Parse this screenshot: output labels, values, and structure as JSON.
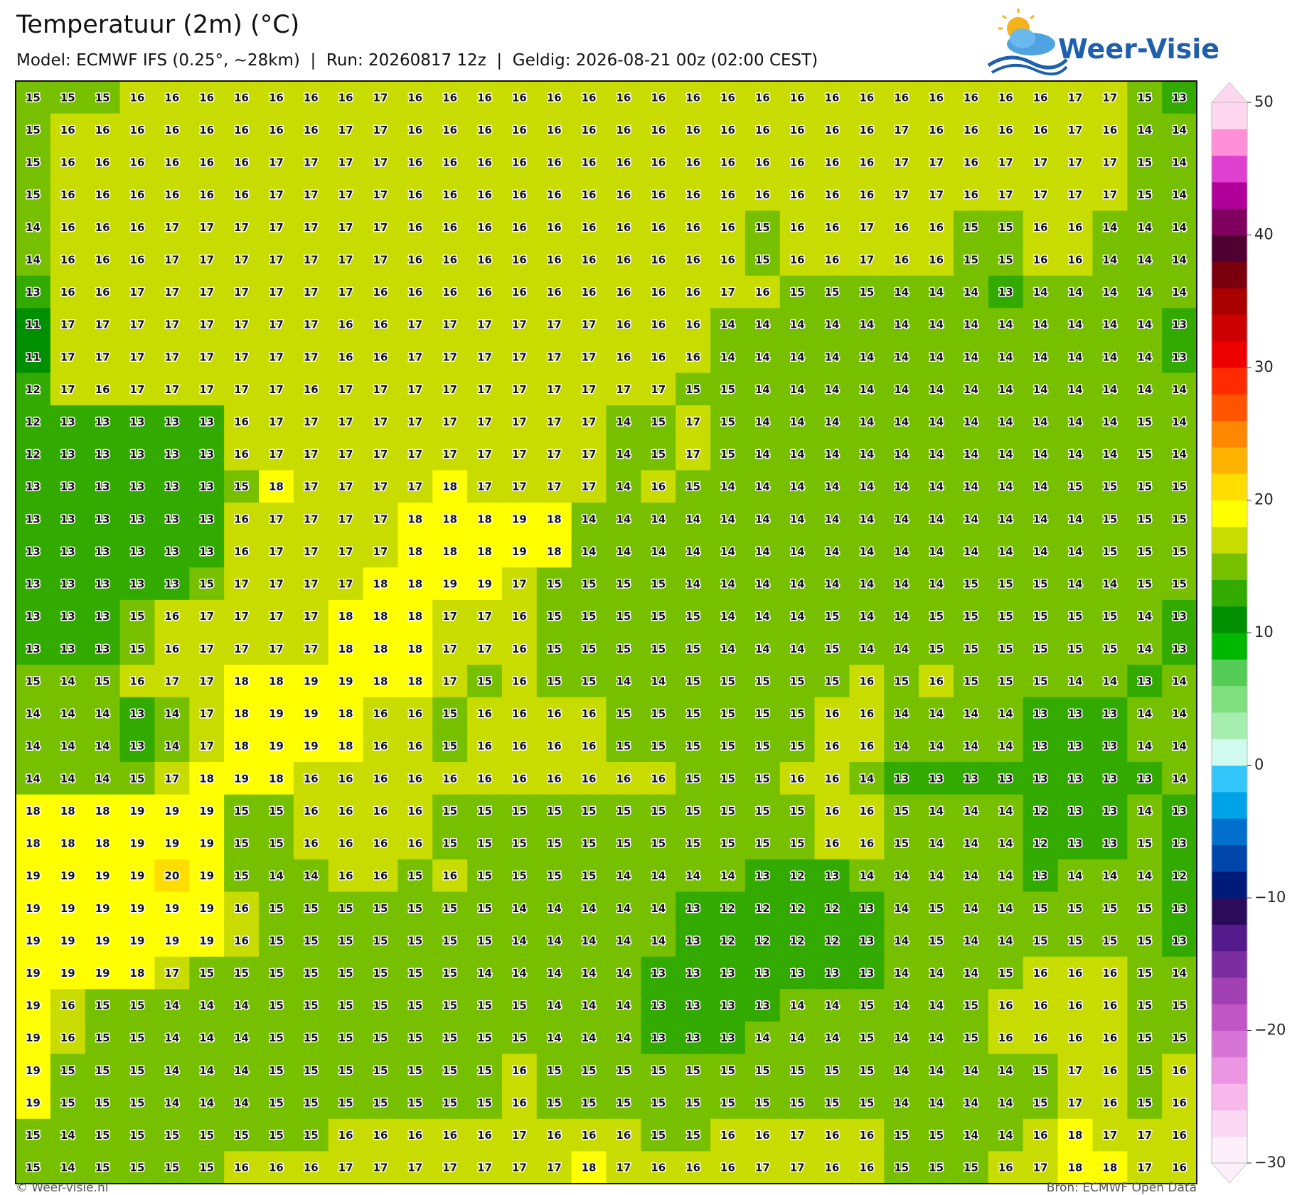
{
  "header": {
    "title": "Temperatuur (2m) (°C)",
    "subtitle": "Model: ECMWF IFS (0.25°, ~28km)  |  Run: 20260817 12z  |  Geldig: 2026-08-21 00z (02:00 CEST)",
    "logo": "Weer-Visie"
  },
  "grid": {
    "values": [
      [
        15,
        15,
        15,
        16,
        16,
        16,
        16,
        16,
        16,
        16,
        17,
        16,
        16,
        16,
        16,
        16,
        16,
        16,
        16,
        16,
        16,
        16,
        16,
        16,
        16,
        16,
        16,
        16,
        16,
        16,
        17,
        17,
        15,
        13
      ],
      [
        15,
        16,
        16,
        16,
        16,
        16,
        16,
        16,
        16,
        17,
        17,
        16,
        16,
        16,
        16,
        16,
        16,
        16,
        16,
        16,
        16,
        16,
        16,
        16,
        16,
        17,
        16,
        16,
        16,
        16,
        17,
        16,
        14,
        14
      ],
      [
        15,
        16,
        16,
        16,
        16,
        16,
        16,
        17,
        17,
        17,
        17,
        16,
        16,
        16,
        16,
        16,
        16,
        16,
        16,
        16,
        16,
        16,
        16,
        16,
        16,
        17,
        17,
        16,
        17,
        17,
        17,
        17,
        15,
        14
      ],
      [
        15,
        16,
        16,
        16,
        16,
        16,
        16,
        17,
        17,
        17,
        17,
        16,
        16,
        16,
        16,
        16,
        16,
        16,
        16,
        16,
        16,
        16,
        16,
        16,
        16,
        17,
        17,
        16,
        17,
        17,
        17,
        17,
        15,
        14
      ],
      [
        14,
        16,
        16,
        16,
        17,
        17,
        17,
        17,
        17,
        17,
        17,
        16,
        16,
        16,
        16,
        16,
        16,
        16,
        16,
        16,
        16,
        15,
        16,
        16,
        17,
        16,
        16,
        15,
        15,
        16,
        16,
        14,
        14,
        14
      ],
      [
        14,
        16,
        16,
        16,
        17,
        17,
        17,
        17,
        17,
        17,
        17,
        16,
        16,
        16,
        16,
        16,
        16,
        16,
        16,
        16,
        16,
        15,
        16,
        16,
        17,
        16,
        16,
        15,
        15,
        16,
        16,
        14,
        14,
        14
      ],
      [
        13,
        16,
        16,
        17,
        17,
        17,
        17,
        17,
        17,
        17,
        16,
        16,
        16,
        16,
        16,
        16,
        16,
        16,
        16,
        16,
        17,
        16,
        15,
        15,
        15,
        14,
        14,
        14,
        13,
        14,
        14,
        14,
        14,
        14
      ],
      [
        11,
        17,
        17,
        17,
        17,
        17,
        17,
        17,
        17,
        16,
        16,
        17,
        17,
        17,
        17,
        17,
        17,
        16,
        16,
        16,
        14,
        14,
        14,
        14,
        14,
        14,
        14,
        14,
        14,
        14,
        14,
        14,
        14,
        13
      ],
      [
        11,
        17,
        17,
        17,
        17,
        17,
        17,
        17,
        17,
        16,
        16,
        17,
        17,
        17,
        17,
        17,
        17,
        16,
        16,
        16,
        14,
        14,
        14,
        14,
        14,
        14,
        14,
        14,
        14,
        14,
        14,
        14,
        14,
        13
      ],
      [
        12,
        17,
        16,
        17,
        17,
        17,
        17,
        17,
        16,
        17,
        17,
        17,
        17,
        17,
        17,
        17,
        17,
        17,
        17,
        15,
        15,
        14,
        14,
        14,
        14,
        14,
        14,
        14,
        14,
        14,
        14,
        14,
        14,
        14
      ],
      [
        12,
        13,
        13,
        13,
        13,
        13,
        16,
        17,
        17,
        17,
        17,
        17,
        17,
        17,
        17,
        17,
        17,
        14,
        15,
        17,
        15,
        14,
        14,
        14,
        14,
        14,
        14,
        14,
        14,
        14,
        14,
        14,
        15,
        14
      ],
      [
        12,
        13,
        13,
        13,
        13,
        13,
        16,
        17,
        17,
        17,
        17,
        17,
        17,
        17,
        17,
        17,
        17,
        14,
        15,
        17,
        15,
        14,
        14,
        14,
        14,
        14,
        14,
        14,
        14,
        14,
        14,
        14,
        15,
        14
      ],
      [
        13,
        13,
        13,
        13,
        13,
        13,
        15,
        18,
        17,
        17,
        17,
        17,
        18,
        17,
        17,
        17,
        17,
        14,
        16,
        15,
        14,
        14,
        14,
        14,
        14,
        14,
        14,
        14,
        14,
        14,
        15,
        15,
        15,
        15
      ],
      [
        13,
        13,
        13,
        13,
        13,
        13,
        16,
        17,
        17,
        17,
        17,
        18,
        18,
        18,
        19,
        18,
        14,
        14,
        14,
        14,
        14,
        14,
        14,
        14,
        14,
        14,
        14,
        14,
        14,
        14,
        14,
        15,
        15,
        15
      ],
      [
        13,
        13,
        13,
        13,
        13,
        13,
        16,
        17,
        17,
        17,
        17,
        18,
        18,
        18,
        19,
        18,
        14,
        14,
        14,
        14,
        14,
        14,
        14,
        14,
        14,
        14,
        14,
        14,
        14,
        14,
        14,
        15,
        15,
        15
      ],
      [
        13,
        13,
        13,
        13,
        13,
        15,
        17,
        17,
        17,
        17,
        18,
        18,
        19,
        19,
        17,
        15,
        15,
        15,
        15,
        14,
        14,
        14,
        14,
        14,
        14,
        14,
        14,
        15,
        15,
        15,
        14,
        14,
        15,
        15
      ],
      [
        13,
        13,
        13,
        15,
        16,
        17,
        17,
        17,
        17,
        18,
        18,
        18,
        17,
        17,
        16,
        15,
        15,
        15,
        15,
        15,
        14,
        14,
        14,
        15,
        14,
        14,
        15,
        15,
        15,
        15,
        15,
        15,
        14,
        13
      ],
      [
        13,
        13,
        13,
        15,
        16,
        17,
        17,
        17,
        17,
        18,
        18,
        18,
        17,
        17,
        16,
        15,
        15,
        15,
        15,
        15,
        14,
        14,
        14,
        15,
        14,
        14,
        15,
        15,
        15,
        15,
        15,
        15,
        14,
        13
      ],
      [
        15,
        14,
        15,
        16,
        17,
        17,
        18,
        18,
        19,
        19,
        18,
        18,
        17,
        15,
        16,
        15,
        15,
        14,
        14,
        15,
        15,
        15,
        15,
        15,
        16,
        15,
        16,
        15,
        15,
        15,
        14,
        14,
        13,
        14
      ],
      [
        14,
        14,
        14,
        13,
        14,
        17,
        18,
        19,
        19,
        18,
        16,
        16,
        15,
        16,
        16,
        16,
        16,
        15,
        15,
        15,
        15,
        15,
        15,
        16,
        16,
        14,
        14,
        14,
        14,
        13,
        13,
        13,
        14,
        14
      ],
      [
        14,
        14,
        14,
        13,
        14,
        17,
        18,
        19,
        19,
        18,
        16,
        16,
        15,
        16,
        16,
        16,
        16,
        15,
        15,
        15,
        15,
        15,
        15,
        16,
        16,
        14,
        14,
        14,
        14,
        13,
        13,
        13,
        14,
        14
      ],
      [
        14,
        14,
        14,
        15,
        17,
        18,
        19,
        18,
        16,
        16,
        16,
        16,
        16,
        16,
        16,
        16,
        16,
        16,
        16,
        15,
        15,
        15,
        16,
        16,
        14,
        13,
        13,
        13,
        13,
        13,
        13,
        13,
        13,
        14
      ],
      [
        18,
        18,
        18,
        19,
        19,
        19,
        15,
        15,
        16,
        16,
        16,
        16,
        15,
        15,
        15,
        15,
        15,
        15,
        15,
        15,
        15,
        15,
        15,
        16,
        16,
        15,
        14,
        14,
        14,
        12,
        13,
        13,
        14,
        13
      ],
      [
        18,
        18,
        18,
        19,
        19,
        19,
        15,
        15,
        16,
        16,
        16,
        16,
        15,
        15,
        15,
        15,
        15,
        15,
        15,
        15,
        15,
        15,
        15,
        16,
        16,
        15,
        14,
        14,
        14,
        12,
        13,
        13,
        15,
        13
      ],
      [
        19,
        19,
        19,
        19,
        20,
        19,
        15,
        14,
        14,
        16,
        16,
        15,
        16,
        15,
        15,
        15,
        15,
        14,
        14,
        14,
        14,
        13,
        12,
        13,
        14,
        14,
        14,
        14,
        14,
        13,
        14,
        14,
        14,
        12
      ],
      [
        19,
        19,
        19,
        19,
        19,
        19,
        16,
        15,
        15,
        15,
        15,
        15,
        15,
        15,
        14,
        14,
        14,
        14,
        14,
        13,
        12,
        12,
        12,
        12,
        13,
        14,
        15,
        14,
        14,
        15,
        15,
        15,
        15,
        13
      ],
      [
        19,
        19,
        19,
        19,
        19,
        19,
        16,
        15,
        15,
        15,
        15,
        15,
        15,
        15,
        14,
        14,
        14,
        14,
        14,
        13,
        12,
        12,
        12,
        12,
        13,
        14,
        15,
        14,
        14,
        15,
        15,
        15,
        15,
        13
      ],
      [
        19,
        19,
        19,
        18,
        17,
        15,
        15,
        15,
        15,
        15,
        15,
        15,
        15,
        14,
        14,
        14,
        14,
        14,
        13,
        13,
        13,
        13,
        13,
        13,
        13,
        14,
        14,
        14,
        15,
        16,
        16,
        16,
        15,
        14
      ],
      [
        19,
        16,
        15,
        15,
        14,
        14,
        14,
        15,
        15,
        15,
        15,
        15,
        15,
        15,
        15,
        14,
        14,
        14,
        13,
        13,
        13,
        13,
        14,
        14,
        15,
        14,
        14,
        15,
        16,
        16,
        16,
        16,
        15,
        15
      ],
      [
        19,
        16,
        15,
        15,
        14,
        14,
        14,
        15,
        15,
        15,
        15,
        15,
        15,
        15,
        15,
        14,
        14,
        14,
        13,
        13,
        13,
        14,
        14,
        14,
        15,
        14,
        14,
        15,
        16,
        16,
        16,
        16,
        15,
        15
      ],
      [
        19,
        15,
        15,
        15,
        14,
        14,
        14,
        15,
        15,
        15,
        15,
        15,
        15,
        15,
        16,
        15,
        15,
        15,
        15,
        15,
        15,
        15,
        15,
        15,
        15,
        14,
        14,
        14,
        14,
        15,
        17,
        16,
        15,
        16
      ],
      [
        19,
        15,
        15,
        15,
        14,
        14,
        14,
        15,
        15,
        15,
        15,
        15,
        15,
        15,
        16,
        15,
        15,
        15,
        15,
        15,
        15,
        15,
        15,
        15,
        15,
        14,
        14,
        14,
        14,
        15,
        17,
        16,
        15,
        16
      ],
      [
        15,
        14,
        15,
        15,
        15,
        15,
        15,
        15,
        15,
        16,
        16,
        16,
        16,
        16,
        17,
        16,
        16,
        16,
        15,
        15,
        16,
        16,
        17,
        16,
        16,
        15,
        15,
        14,
        14,
        16,
        18,
        17,
        17,
        16
      ],
      [
        15,
        14,
        15,
        15,
        15,
        15,
        16,
        16,
        16,
        17,
        17,
        17,
        17,
        17,
        17,
        17,
        18,
        17,
        16,
        16,
        16,
        17,
        17,
        16,
        16,
        15,
        15,
        15,
        16,
        17,
        18,
        18,
        17,
        16
      ]
    ]
  },
  "colorbar": {
    "lim": [
      -30,
      50
    ],
    "ticks": [
      {
        "value": -30,
        "label": "−30"
      },
      {
        "value": -20,
        "label": "−20"
      },
      {
        "value": -10,
        "label": "−10"
      },
      0,
      10,
      20,
      30,
      40,
      50
    ],
    "colors": [
      "#fdf0fb",
      "#fbd8f4",
      "#f7b8ec",
      "#eb95e3",
      "#d775d6",
      "#c055c5",
      "#a040b3",
      "#7c2da0",
      "#551a8c",
      "#2a0c5a",
      "#001a7a",
      "#0045aa",
      "#0070cc",
      "#00a3e8",
      "#33c6fb",
      "#d2fbf0",
      "#a6eeb0",
      "#80e080",
      "#55cc55",
      "#00b800",
      "#008f00",
      "#33aa00",
      "#77c000",
      "#c8dc00",
      "#ffff00",
      "#ffdd00",
      "#ffb300",
      "#ff8800",
      "#ff5500",
      "#ff2a00",
      "#ee0000",
      "#cc0000",
      "#aa0000",
      "#7a0010",
      "#500030",
      "#800060",
      "#b0009a",
      "#e040d0",
      "#ff90d8",
      "#ffd8f0"
    ]
  },
  "footer": {
    "left": "© Weer-visie.nl",
    "right": "Bron: ECMWF Open Data"
  }
}
